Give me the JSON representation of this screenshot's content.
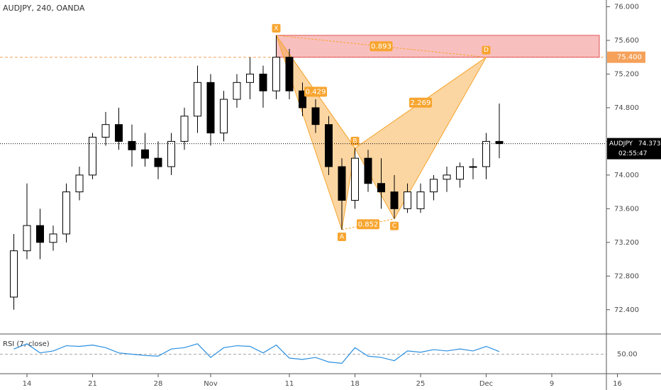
{
  "chart_data": {
    "type": "candlestick",
    "title": "AUDJPY, 240, OANDA",
    "categories": [
      null,
      "14",
      null,
      null,
      null,
      null,
      "21",
      null,
      null,
      null,
      null,
      "28",
      null,
      null,
      null,
      "Nov",
      null,
      null,
      null,
      null,
      null,
      "11",
      null,
      null,
      null,
      null,
      "18",
      null,
      null,
      null,
      null,
      "25",
      null,
      null,
      null,
      null,
      "Dec",
      null,
      null,
      null,
      null,
      "9",
      null,
      null,
      null,
      null,
      "16"
    ],
    "open": [
      72.55,
      73.1,
      73.4,
      73.2,
      73.3,
      73.8,
      74.0,
      74.45,
      74.6,
      74.4,
      74.3,
      74.2,
      74.1,
      74.4,
      74.7,
      75.1,
      74.5,
      74.9,
      75.1,
      75.2,
      75.0,
      75.4,
      75.0,
      74.8,
      74.6,
      74.1,
      73.7,
      74.2,
      73.9,
      73.8,
      73.6,
      73.6,
      73.8,
      73.95,
      73.95,
      74.1,
      74.1,
      74.4,
      null,
      null,
      null,
      null,
      null,
      null,
      null,
      null,
      null
    ],
    "high": [
      73.3,
      73.9,
      73.6,
      73.4,
      73.9,
      74.1,
      74.5,
      74.75,
      74.8,
      74.6,
      74.5,
      74.4,
      74.5,
      74.8,
      75.3,
      75.2,
      75.0,
      75.2,
      75.4,
      75.3,
      75.66,
      75.5,
      75.1,
      74.9,
      74.7,
      74.2,
      74.32,
      74.3,
      74.2,
      74.0,
      73.9,
      73.9,
      74.0,
      74.1,
      74.15,
      74.2,
      74.5,
      74.85,
      null,
      null,
      null,
      null,
      null,
      null,
      null,
      null,
      null
    ],
    "low": [
      72.4,
      73.0,
      73.0,
      73.1,
      73.2,
      73.7,
      73.95,
      74.35,
      74.3,
      74.1,
      74.1,
      73.95,
      74.0,
      74.3,
      74.5,
      74.35,
      74.4,
      74.8,
      74.9,
      74.8,
      74.9,
      74.9,
      74.7,
      74.5,
      74.0,
      73.35,
      73.6,
      73.8,
      73.6,
      73.48,
      73.55,
      73.55,
      73.7,
      73.8,
      73.85,
      73.95,
      73.95,
      74.2,
      null,
      null,
      null,
      null,
      null,
      null,
      null,
      null,
      null
    ],
    "close": [
      73.1,
      73.4,
      73.2,
      73.3,
      73.8,
      74.0,
      74.45,
      74.6,
      74.4,
      74.3,
      74.2,
      74.1,
      74.4,
      74.7,
      75.1,
      74.5,
      74.9,
      75.1,
      75.2,
      75.0,
      75.4,
      75.0,
      74.8,
      74.6,
      74.1,
      73.7,
      74.2,
      73.9,
      73.8,
      73.6,
      73.8,
      73.8,
      73.95,
      74.0,
      74.1,
      74.1,
      74.4,
      74.373,
      null,
      null,
      null,
      null,
      null,
      null,
      null,
      null,
      null
    ],
    "ylim": [
      72.12,
      76.08
    ],
    "yticks": [
      {
        "value": 72.4,
        "label": "72.400"
      },
      {
        "value": 72.8,
        "label": "72.800"
      },
      {
        "value": 73.2,
        "label": "73.200"
      },
      {
        "value": 73.6,
        "label": "73.600"
      },
      {
        "value": 74,
        "label": "74.000"
      },
      {
        "value": 74.4,
        "label": "74.400"
      },
      {
        "value": 74.8,
        "label": "74.800"
      },
      {
        "value": 75.2,
        "label": "75.200"
      },
      {
        "value": 75.6,
        "label": "75.600"
      },
      {
        "value": 76,
        "label": "76.000"
      }
    ],
    "symbol": "AUDJPY",
    "last_price": 74.373,
    "countdown": "02:55:47",
    "level": {
      "value": 75.4,
      "label": "75.400",
      "color": "#f5a15a"
    },
    "pattern": {
      "color": "#f7a530",
      "zone_color": "#f28b8b",
      "points": [
        {
          "label": "X",
          "index": 20,
          "value": 75.66
        },
        {
          "label": "A",
          "index": 25,
          "value": 73.35
        },
        {
          "label": "B",
          "index": 26,
          "value": 74.32
        },
        {
          "label": "C",
          "index": 29,
          "value": 73.48
        },
        {
          "label": "D",
          "index": 36,
          "value": 75.4
        }
      ],
      "ratios": [
        0.429,
        2.269,
        0.852,
        0.893
      ]
    },
    "rsi": {
      "title": "RSI (7, close)",
      "color": "#2a8fe0",
      "ylim": [
        20,
        80
      ],
      "yticks": [
        {
          "value": 50,
          "label": "50.00"
        }
      ],
      "values": [
        58,
        66,
        52,
        55,
        63,
        62,
        64,
        60,
        52,
        50,
        48,
        47,
        58,
        60,
        66,
        45,
        60,
        63,
        62,
        52,
        64,
        44,
        42,
        45,
        38,
        36,
        60,
        47,
        45,
        40,
        55,
        53,
        57,
        55,
        58,
        55,
        62,
        54,
        null,
        null,
        null,
        null,
        null,
        null,
        null,
        null,
        null
      ]
    }
  }
}
